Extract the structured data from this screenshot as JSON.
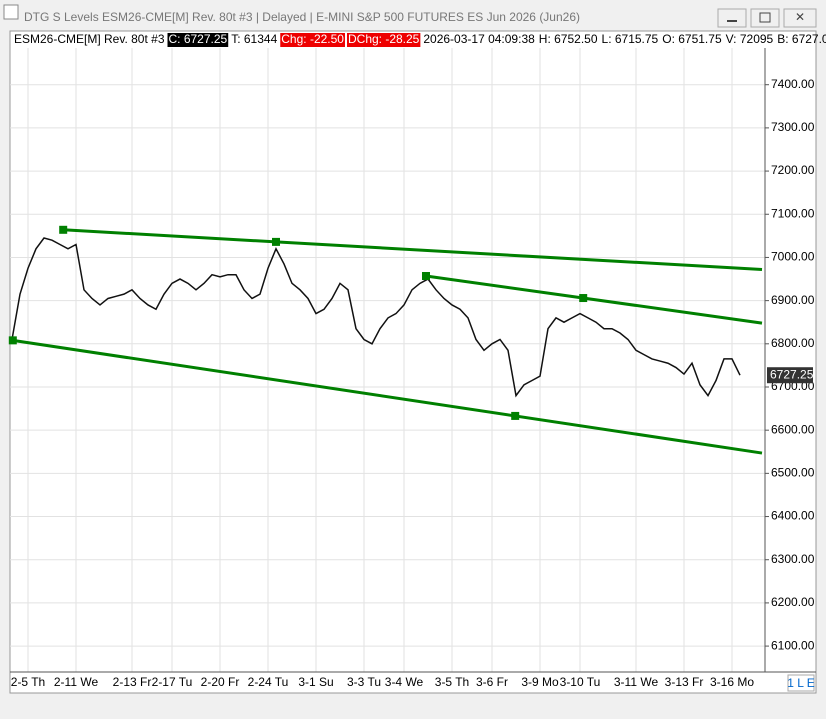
{
  "window_title": "DTG S Levels ESM26-CME[M]  Rev. 80t #3 | Delayed | E-MINI S&P 500 FUTURES ES Jun 2026 (Jun26)",
  "info_bar": {
    "symbol": "ESM26-CME[M]  Rev. 80t #3",
    "close": "C: 6727.25",
    "ticks": "T: 61344",
    "change": "Chg: -22.50",
    "day_change": "DChg: -28.25",
    "time": "2026-03-17 04:09:38",
    "high": "H: 6752.50",
    "low": "L: 6715.75",
    "open": "O: 6751.75",
    "volume": "V: 72095",
    "bid": "B: 6727.0"
  },
  "status": "1 L E",
  "chart_data": {
    "type": "line",
    "categories": [
      null,
      null,
      "2-5 Th",
      null,
      null,
      null,
      null,
      null,
      "2-11 We",
      null,
      null,
      null,
      null,
      null,
      null,
      "2-13 Fr",
      null,
      null,
      null,
      null,
      "2-17 Tu",
      null,
      null,
      null,
      null,
      null,
      "2-20 Fr",
      null,
      null,
      null,
      null,
      null,
      "2-24 Tu",
      null,
      null,
      null,
      null,
      null,
      "3-1 Su",
      null,
      null,
      null,
      null,
      null,
      "3-3 Tu",
      null,
      null,
      null,
      null,
      "3-4 We",
      null,
      null,
      null,
      null,
      null,
      "3-5 Th",
      null,
      null,
      null,
      null,
      "3-6 Fr",
      null,
      null,
      null,
      null,
      null,
      "3-9 Mo",
      null,
      null,
      null,
      null,
      "3-10 Tu",
      null,
      null,
      null,
      null,
      null,
      null,
      "3-11 We",
      null,
      null,
      null,
      null,
      null,
      "3-13 Fr",
      null,
      null,
      null,
      null,
      null,
      "3-16 Mo",
      null
    ],
    "series": [
      {
        "color": "#111111",
        "values": [
          6810,
          6915,
          6975,
          7020,
          7045,
          7040,
          7030,
          7020,
          7030,
          6925,
          6905,
          6890,
          6905,
          6910,
          6915,
          6925,
          6905,
          6890,
          6880,
          6915,
          6940,
          6950,
          6940,
          6925,
          6940,
          6960,
          6955,
          6960,
          6960,
          6925,
          6905,
          6915,
          6975,
          7020,
          6985,
          6940,
          6925,
          6905,
          6870,
          6880,
          6905,
          6940,
          6925,
          6835,
          6810,
          6800,
          6835,
          6860,
          6870,
          6890,
          6925,
          6940,
          6950,
          6925,
          6905,
          6890,
          6880,
          6860,
          6810,
          6785,
          6800,
          6810,
          6785,
          6680,
          6705,
          6715,
          6725,
          6835,
          6860,
          6850,
          6860,
          6870,
          6860,
          6850,
          6835,
          6835,
          6825,
          6810,
          6785,
          6775,
          6765,
          6760,
          6755,
          6745,
          6730,
          6755,
          6705,
          6680,
          6715,
          6765,
          6765,
          6727.25
        ]
      }
    ],
    "trendlines": [
      {
        "color": "#008000",
        "points": [
          [
            6.4,
            7064
          ],
          [
            33,
            7036
          ]
        ]
      },
      {
        "color": "#008000",
        "points": [
          [
            51.75,
            6957
          ],
          [
            71.4,
            6906
          ]
        ]
      },
      {
        "color": "#008000",
        "points": [
          [
            0.1,
            6808
          ],
          [
            62.9,
            6633
          ]
        ]
      }
    ],
    "ylim": [
      6040,
      7485
    ],
    "yticks": [
      {
        "value": 6100,
        "label": "6100.00"
      },
      {
        "value": 6200,
        "label": "6200.00"
      },
      {
        "value": 6300,
        "label": "6300.00"
      },
      {
        "value": 6400,
        "label": "6400.00"
      },
      {
        "value": 6500,
        "label": "6500.00"
      },
      {
        "value": 6600,
        "label": "6600.00"
      },
      {
        "value": 6700,
        "label": "6700.00"
      },
      {
        "value": 6800,
        "label": "6800.00"
      },
      {
        "value": 6900,
        "label": "6900.00"
      },
      {
        "value": 7000,
        "label": "7000.00"
      },
      {
        "value": 7100,
        "label": "7100.00"
      },
      {
        "value": 7200,
        "label": "7200.00"
      },
      {
        "value": 7300,
        "label": "7300.00"
      },
      {
        "value": 7400,
        "label": "7400.00"
      }
    ],
    "grid": true
  }
}
